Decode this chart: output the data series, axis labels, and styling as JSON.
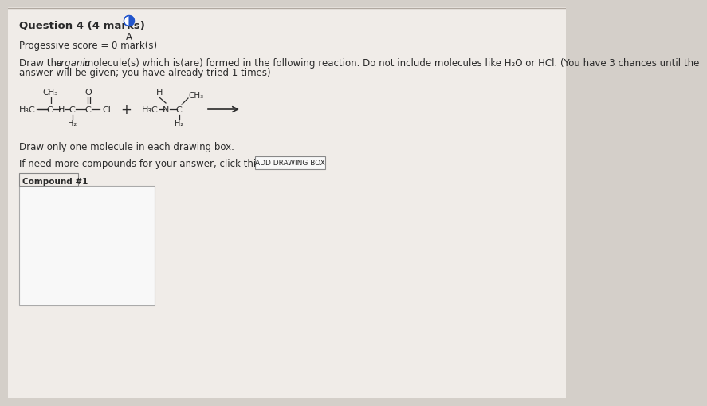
{
  "bg_color": "#d4cfc9",
  "page_bg": "#f0ece8",
  "title": "Question 4 (4 marks)",
  "subtitle": "A",
  "progress": "Progessive score = 0 mark(s)",
  "draw_note": "Draw only one molecule in each drawing box.",
  "button_note": "If need more compounds for your answer, click this button",
  "button_text": "ADD DRAWING BOX",
  "compound_label": "Compound #1",
  "box_color": "#ebebeb",
  "text_color": "#2a2a2a",
  "italic_word": "organic",
  "instr_pre": "Draw the ",
  "instr_post": " molecule(s) which is(are) formed in the following reaction. Do not include molecules like H₂O or HCl. (You have 3 chances until the",
  "instr_line2": "answer will be given; you have already tried 1 times)"
}
